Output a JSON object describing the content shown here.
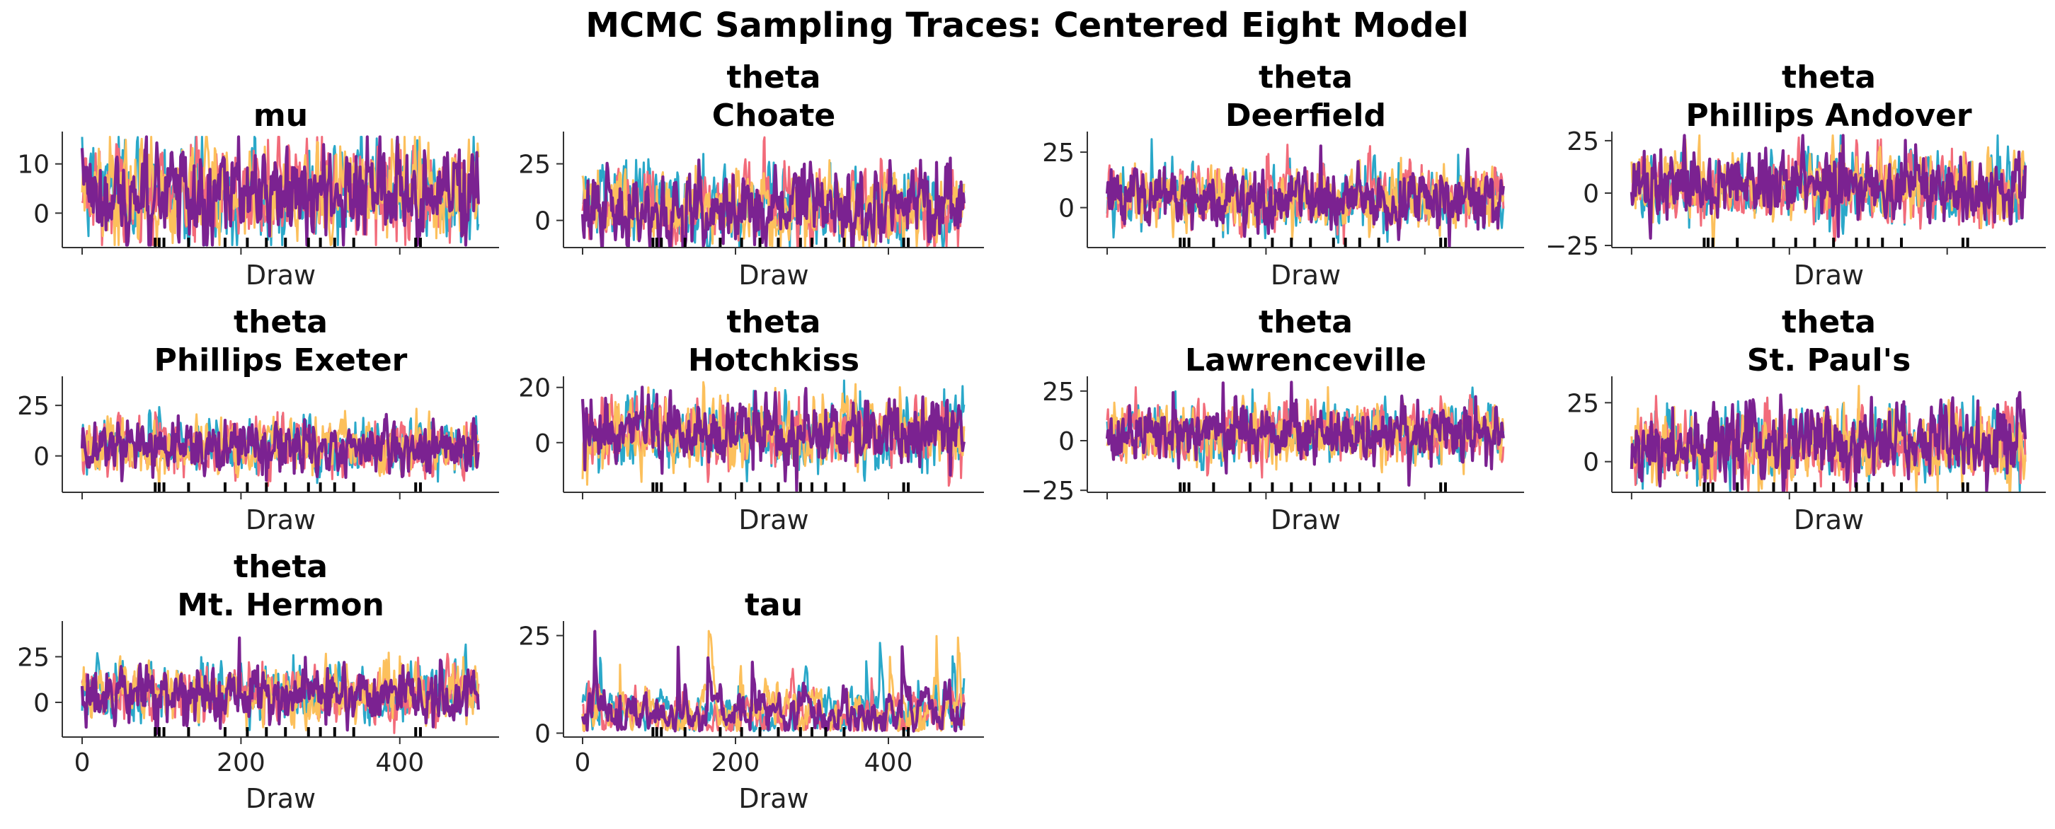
{
  "figure_title": "MCMC Sampling Traces: Centered Eight Model",
  "chain_colors": [
    "#2aa8c9",
    "#f26b7a",
    "#fcc05c",
    "#7b2291"
  ],
  "divergence_color": "#000000",
  "chart_data": [
    {
      "type": "line",
      "title": [
        "mu"
      ],
      "xlabel": "Draw",
      "ylabel": "",
      "xlim": [
        -25,
        525
      ],
      "ylim": [
        -7,
        16
      ],
      "yticks": [
        0,
        10
      ],
      "show_x_ticklabels": false,
      "xticks": [
        0,
        200,
        400
      ],
      "base": 4.5,
      "amp": 5.2,
      "n_draws": 500,
      "n_chains": 4,
      "divergences": [
        92,
        97,
        103,
        134,
        180,
        208,
        232,
        256,
        285,
        300,
        318,
        342,
        420,
        426
      ]
    },
    {
      "type": "line",
      "title": [
        "theta",
        "Choate"
      ],
      "xlabel": "Draw",
      "ylabel": "",
      "xlim": [
        -25,
        525
      ],
      "ylim": [
        -12,
        38
      ],
      "yticks": [
        0,
        25
      ],
      "show_x_ticklabels": false,
      "xticks": [
        0,
        200,
        400
      ],
      "base": 6.5,
      "amp": 9,
      "n_draws": 500,
      "n_chains": 4,
      "divergences": [
        92,
        97,
        103,
        134,
        180,
        208,
        232,
        256,
        285,
        300,
        318,
        342,
        420,
        426
      ]
    },
    {
      "type": "line",
      "title": [
        "theta",
        "Deerfield"
      ],
      "xlabel": "Draw",
      "ylabel": "",
      "xlim": [
        -25,
        525
      ],
      "ylim": [
        -18,
        33
      ],
      "yticks": [
        0,
        25
      ],
      "show_x_ticklabels": false,
      "xticks": [
        0,
        200,
        400
      ],
      "base": 4.5,
      "amp": 7.5,
      "n_draws": 500,
      "n_chains": 4,
      "divergences": [
        92,
        97,
        103,
        134,
        180,
        208,
        232,
        256,
        285,
        300,
        318,
        342,
        420,
        426
      ]
    },
    {
      "type": "line",
      "title": [
        "theta",
        "Phillips Andover"
      ],
      "xlabel": "Draw",
      "ylabel": "",
      "xlim": [
        -25,
        525
      ],
      "ylim": [
        -26,
        28
      ],
      "yticks": [
        -25,
        0,
        25
      ],
      "show_x_ticklabels": false,
      "xticks": [
        0,
        200,
        400
      ],
      "base": 3,
      "amp": 8.5,
      "n_draws": 500,
      "n_chains": 4,
      "divergences": [
        92,
        97,
        103,
        134,
        180,
        208,
        232,
        256,
        285,
        300,
        318,
        342,
        420,
        426
      ]
    },
    {
      "type": "line",
      "title": [
        "theta",
        "Phillips Exeter"
      ],
      "xlabel": "Draw",
      "ylabel": "",
      "xlim": [
        -25,
        525
      ],
      "ylim": [
        -18,
        38
      ],
      "yticks": [
        0,
        25
      ],
      "show_x_ticklabels": false,
      "xticks": [
        0,
        200,
        400
      ],
      "base": 4.5,
      "amp": 7,
      "n_draws": 500,
      "n_chains": 4,
      "divergences": [
        92,
        97,
        103,
        134,
        180,
        208,
        232,
        256,
        285,
        300,
        318,
        342,
        420,
        426
      ]
    },
    {
      "type": "line",
      "title": [
        "theta",
        "Hotchkiss"
      ],
      "xlabel": "Draw",
      "ylabel": "",
      "xlim": [
        -25,
        525
      ],
      "ylim": [
        -18,
        23
      ],
      "yticks": [
        0,
        20
      ],
      "show_x_ticklabels": false,
      "xticks": [
        0,
        200,
        400
      ],
      "base": 3.5,
      "amp": 6.5,
      "n_draws": 500,
      "n_chains": 4,
      "divergences": [
        92,
        97,
        103,
        134,
        180,
        208,
        232,
        256,
        285,
        300,
        318,
        342,
        420,
        426
      ]
    },
    {
      "type": "line",
      "title": [
        "theta",
        "Lawrenceville"
      ],
      "xlabel": "Draw",
      "ylabel": "",
      "xlim": [
        -25,
        525
      ],
      "ylim": [
        -26,
        31
      ],
      "yticks": [
        -25,
        0,
        25
      ],
      "show_x_ticklabels": false,
      "xticks": [
        0,
        200,
        400
      ],
      "base": 3.5,
      "amp": 8,
      "n_draws": 500,
      "n_chains": 4,
      "divergences": [
        92,
        97,
        103,
        134,
        180,
        208,
        232,
        256,
        285,
        300,
        318,
        342,
        420,
        426
      ]
    },
    {
      "type": "line",
      "title": [
        "theta",
        "St. Paul's"
      ],
      "xlabel": "Draw",
      "ylabel": "",
      "xlim": [
        -25,
        525
      ],
      "ylim": [
        -13,
        35
      ],
      "yticks": [
        0,
        25
      ],
      "show_x_ticklabels": false,
      "xticks": [
        0,
        200,
        400
      ],
      "base": 7,
      "amp": 8.5,
      "n_draws": 500,
      "n_chains": 4,
      "divergences": [
        92,
        97,
        103,
        134,
        180,
        208,
        232,
        256,
        285,
        300,
        318,
        342,
        420,
        426
      ]
    },
    {
      "type": "line",
      "title": [
        "theta",
        "Mt. Hermon"
      ],
      "xlabel": "Draw",
      "ylabel": "",
      "xlim": [
        -25,
        525
      ],
      "ylim": [
        -19,
        43
      ],
      "yticks": [
        0,
        25
      ],
      "show_x_ticklabels": true,
      "xticks": [
        0,
        200,
        400
      ],
      "base": 5,
      "amp": 8,
      "n_draws": 500,
      "n_chains": 4,
      "divergences": [
        92,
        97,
        103,
        134,
        180,
        208,
        232,
        256,
        285,
        300,
        318,
        342,
        420,
        426
      ]
    },
    {
      "type": "line",
      "title": [
        "tau"
      ],
      "xlabel": "Draw",
      "ylabel": "",
      "xlim": [
        -25,
        525
      ],
      "ylim": [
        -1,
        28
      ],
      "yticks": [
        0,
        25
      ],
      "show_x_ticklabels": true,
      "xticks": [
        0,
        200,
        400
      ],
      "base": 5,
      "amp": 4,
      "n_draws": 500,
      "n_chains": 4,
      "positive": true,
      "divergences": [
        92,
        97,
        103,
        134,
        180,
        208,
        232,
        256,
        285,
        300,
        318,
        342,
        420,
        426
      ]
    }
  ]
}
